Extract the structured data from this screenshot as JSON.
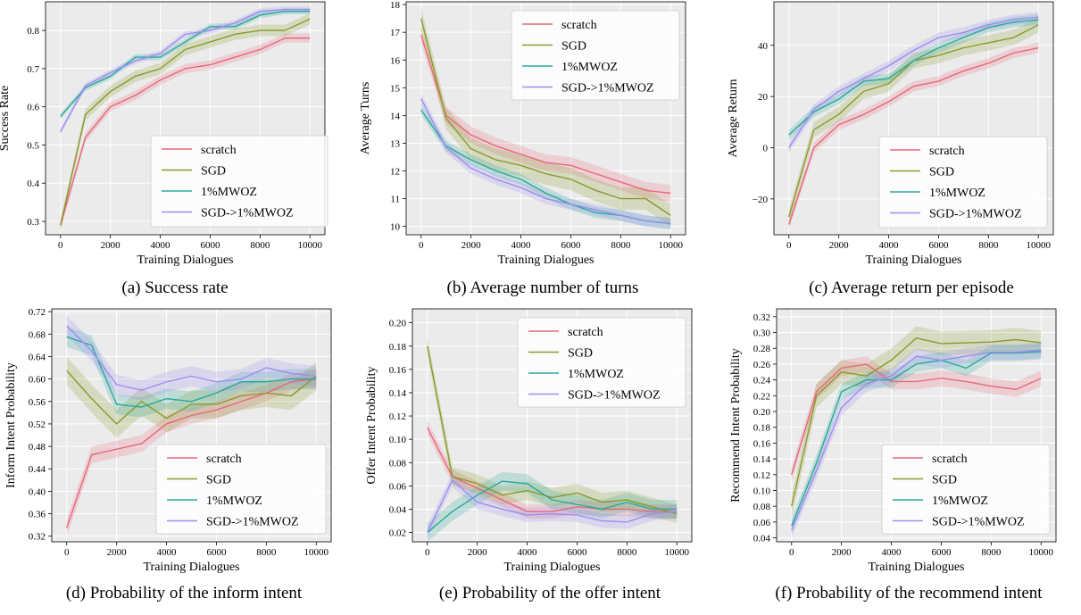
{
  "colors": {
    "scratch": "#e8677a",
    "SGD": "#8a9a2a",
    "1%MWOZ": "#2aa99a",
    "SGD->1%MWOZ": "#9b8ef0",
    "plot_bg": "#ebebeb",
    "grid": "#ffffff"
  },
  "captions": [
    "(a) Success rate",
    "(b) Average number of turns",
    "(c) Average return per episode",
    "(d) Probability of the inform intent",
    "(e) Probability of the offer intent",
    "(f) Probability of the recommend intent"
  ],
  "chart_data": [
    {
      "type": "line",
      "xlabel": "Training Dialogues",
      "ylabel": "Success Rate",
      "xlim": [
        -600,
        10600
      ],
      "ylim": [
        0.265,
        0.875
      ],
      "xticks": [
        0,
        2000,
        4000,
        6000,
        8000,
        10000
      ],
      "yticks": [
        0.3,
        0.4,
        0.5,
        0.6,
        0.7,
        0.8
      ],
      "ydec": 1,
      "legend": "lower-right",
      "x": [
        0,
        1000,
        2000,
        3000,
        4000,
        5000,
        6000,
        7000,
        8000,
        9000,
        10000
      ],
      "series": [
        {
          "name": "scratch",
          "values": [
            0.29,
            0.52,
            0.6,
            0.63,
            0.67,
            0.7,
            0.71,
            0.73,
            0.75,
            0.78,
            0.78
          ],
          "band": 0.012
        },
        {
          "name": "SGD",
          "values": [
            0.29,
            0.58,
            0.64,
            0.68,
            0.7,
            0.75,
            0.77,
            0.79,
            0.8,
            0.8,
            0.83
          ],
          "band": 0.015
        },
        {
          "name": "1%MWOZ",
          "values": [
            0.575,
            0.65,
            0.68,
            0.73,
            0.73,
            0.77,
            0.81,
            0.81,
            0.84,
            0.85,
            0.85
          ],
          "band": 0.008
        },
        {
          "name": "SGD->1%MWOZ",
          "values": [
            0.535,
            0.655,
            0.69,
            0.72,
            0.74,
            0.79,
            0.8,
            0.82,
            0.85,
            0.855,
            0.855
          ],
          "band": 0.008
        }
      ]
    },
    {
      "type": "line",
      "xlabel": "Training Dialogues",
      "ylabel": "Average Turns",
      "xlim": [
        -600,
        10600
      ],
      "ylim": [
        9.7,
        18.1
      ],
      "xticks": [
        0,
        2000,
        4000,
        6000,
        8000,
        10000
      ],
      "yticks": [
        10,
        11,
        12,
        13,
        14,
        15,
        16,
        17,
        18
      ],
      "ydec": 0,
      "legend": "top-right",
      "x": [
        0,
        1000,
        2000,
        3000,
        4000,
        5000,
        6000,
        7000,
        8000,
        9000,
        10000
      ],
      "series": [
        {
          "name": "scratch",
          "values": [
            16.9,
            14.0,
            13.3,
            12.9,
            12.6,
            12.3,
            12.2,
            11.9,
            11.6,
            11.3,
            11.2
          ],
          "band": 0.3
        },
        {
          "name": "SGD",
          "values": [
            17.5,
            13.9,
            12.8,
            12.4,
            12.2,
            11.9,
            11.7,
            11.3,
            11.0,
            11.0,
            10.4
          ],
          "band": 0.4
        },
        {
          "name": "1%MWOZ",
          "values": [
            14.2,
            12.9,
            12.4,
            12.0,
            11.7,
            11.2,
            10.8,
            10.5,
            10.4,
            10.2,
            10.1
          ],
          "band": 0.2
        },
        {
          "name": "SGD->1%MWOZ",
          "values": [
            14.6,
            12.85,
            12.1,
            11.7,
            11.4,
            11.0,
            10.8,
            10.6,
            10.4,
            10.2,
            10.1
          ],
          "band": 0.2
        }
      ]
    },
    {
      "type": "line",
      "xlabel": "Training Dialogues",
      "ylabel": "Average Return",
      "xlim": [
        -600,
        10600
      ],
      "ylim": [
        -34,
        57
      ],
      "xticks": [
        0,
        2000,
        4000,
        6000,
        8000,
        10000
      ],
      "yticks": [
        -20,
        0,
        20,
        40
      ],
      "ydec": 0,
      "legend": "lower-right",
      "x": [
        0,
        1000,
        2000,
        3000,
        4000,
        5000,
        6000,
        7000,
        8000,
        9000,
        10000
      ],
      "series": [
        {
          "name": "scratch",
          "values": [
            -30,
            0,
            9,
            13,
            18,
            24,
            26,
            30,
            33,
            37,
            39
          ],
          "band": 2
        },
        {
          "name": "SGD",
          "values": [
            -27,
            7,
            13,
            22,
            25,
            34,
            36,
            39,
            41,
            43,
            48
          ],
          "band": 3
        },
        {
          "name": "1%MWOZ",
          "values": [
            5,
            14,
            19,
            26,
            27,
            34,
            39,
            43,
            47,
            49,
            50
          ],
          "band": 2
        },
        {
          "name": "SGD->1%MWOZ",
          "values": [
            0,
            15,
            22,
            27,
            32,
            38,
            43,
            45,
            48,
            50,
            51
          ],
          "band": 2
        }
      ]
    },
    {
      "type": "line",
      "xlabel": "Training Dialogues",
      "ylabel": "Inform Intent Probability",
      "xlim": [
        -600,
        10600
      ],
      "ylim": [
        0.31,
        0.725
      ],
      "xticks": [
        0,
        2000,
        4000,
        6000,
        8000,
        10000
      ],
      "yticks": [
        0.32,
        0.36,
        0.4,
        0.44,
        0.48,
        0.52,
        0.56,
        0.6,
        0.64,
        0.68,
        0.72
      ],
      "ydec": 2,
      "legend": "lower-right",
      "x": [
        0,
        1000,
        2000,
        3000,
        4000,
        5000,
        6000,
        7000,
        8000,
        9000,
        10000
      ],
      "series": [
        {
          "name": "scratch",
          "values": [
            0.335,
            0.465,
            0.475,
            0.485,
            0.52,
            0.535,
            0.545,
            0.56,
            0.575,
            0.595,
            0.6
          ],
          "band": 0.015
        },
        {
          "name": "SGD",
          "values": [
            0.615,
            0.565,
            0.52,
            0.56,
            0.53,
            0.555,
            0.555,
            0.57,
            0.575,
            0.57,
            0.605
          ],
          "band": 0.025
        },
        {
          "name": "1%MWOZ",
          "values": [
            0.675,
            0.66,
            0.555,
            0.55,
            0.565,
            0.56,
            0.575,
            0.595,
            0.595,
            0.6,
            0.6
          ],
          "band": 0.018
        },
        {
          "name": "SGD->1%MWOZ",
          "values": [
            0.695,
            0.65,
            0.59,
            0.58,
            0.595,
            0.605,
            0.595,
            0.6,
            0.62,
            0.61,
            0.605
          ],
          "band": 0.018
        }
      ]
    },
    {
      "type": "line",
      "xlabel": "Training Dialogues",
      "ylabel": "Offer Intent Probability",
      "xlim": [
        -600,
        10600
      ],
      "ylim": [
        0.012,
        0.212
      ],
      "xticks": [
        0,
        2000,
        4000,
        6000,
        8000,
        10000
      ],
      "yticks": [
        0.02,
        0.04,
        0.06,
        0.08,
        0.1,
        0.12,
        0.14,
        0.16,
        0.18,
        0.2
      ],
      "ydec": 2,
      "legend": "top-right",
      "x": [
        0,
        1000,
        2000,
        3000,
        4000,
        5000,
        6000,
        7000,
        8000,
        9000,
        10000
      ],
      "series": [
        {
          "name": "scratch",
          "values": [
            0.11,
            0.068,
            0.058,
            0.048,
            0.038,
            0.038,
            0.042,
            0.04,
            0.04,
            0.038,
            0.038
          ],
          "band": 0.006
        },
        {
          "name": "SGD",
          "values": [
            0.18,
            0.068,
            0.062,
            0.052,
            0.056,
            0.05,
            0.054,
            0.046,
            0.048,
            0.042,
            0.036
          ],
          "band": 0.008
        },
        {
          "name": "1%MWOZ",
          "values": [
            0.02,
            0.038,
            0.052,
            0.064,
            0.062,
            0.048,
            0.044,
            0.04,
            0.046,
            0.04,
            0.04
          ],
          "band": 0.008
        },
        {
          "name": "SGD->1%MWOZ",
          "values": [
            0.02,
            0.065,
            0.046,
            0.04,
            0.035,
            0.036,
            0.035,
            0.03,
            0.029,
            0.036,
            0.038
          ],
          "band": 0.006
        }
      ]
    },
    {
      "type": "line",
      "xlabel": "Training Dialogues",
      "ylabel": "Recommend Intent Probability",
      "xlim": [
        -600,
        10600
      ],
      "ylim": [
        0.035,
        0.33
      ],
      "xticks": [
        0,
        2000,
        4000,
        6000,
        8000,
        10000
      ],
      "yticks": [
        0.04,
        0.06,
        0.08,
        0.1,
        0.12,
        0.14,
        0.16,
        0.18,
        0.2,
        0.22,
        0.24,
        0.26,
        0.28,
        0.3,
        0.32
      ],
      "ydec": 2,
      "legend": "lower-right",
      "x": [
        0,
        1000,
        2000,
        3000,
        4000,
        5000,
        6000,
        7000,
        8000,
        9000,
        10000
      ],
      "series": [
        {
          "name": "scratch",
          "values": [
            0.12,
            0.225,
            0.255,
            0.26,
            0.238,
            0.238,
            0.242,
            0.238,
            0.232,
            0.228,
            0.242
          ],
          "band": 0.01
        },
        {
          "name": "SGD",
          "values": [
            0.08,
            0.22,
            0.25,
            0.245,
            0.265,
            0.293,
            0.286,
            0.287,
            0.288,
            0.291,
            0.287
          ],
          "band": 0.015
        },
        {
          "name": "1%MWOZ",
          "values": [
            0.055,
            0.135,
            0.225,
            0.24,
            0.24,
            0.26,
            0.265,
            0.255,
            0.274,
            0.274,
            0.276
          ],
          "band": 0.01
        },
        {
          "name": "SGD->1%MWOZ",
          "values": [
            0.05,
            0.125,
            0.205,
            0.235,
            0.245,
            0.27,
            0.265,
            0.27,
            0.275,
            0.275,
            0.278
          ],
          "band": 0.01
        }
      ]
    }
  ]
}
